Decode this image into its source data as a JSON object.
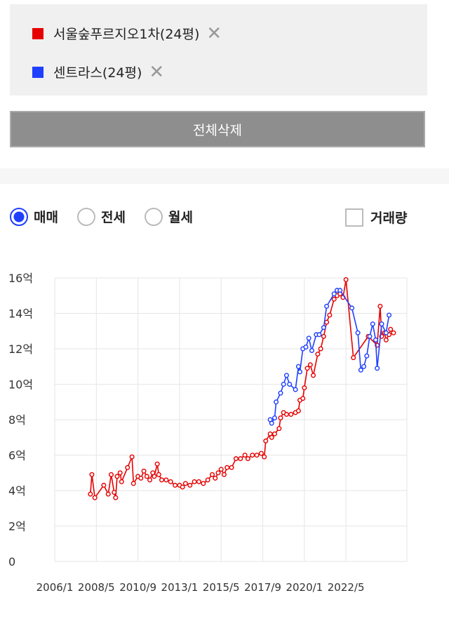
{
  "compare": {
    "items": [
      {
        "label": "서울숲푸르지오1차(24평)",
        "color": "#e60000",
        "remove_icon": "close-icon"
      },
      {
        "label": "센트라스(24평)",
        "color": "#1f3fff",
        "remove_icon": "close-icon"
      }
    ],
    "delete_all_label": "전체삭제"
  },
  "filters": {
    "radios": [
      {
        "label": "매매",
        "selected": true
      },
      {
        "label": "전세",
        "selected": false
      },
      {
        "label": "월세",
        "selected": false
      }
    ],
    "volume_checkbox": {
      "label": "거래량",
      "checked": false
    }
  },
  "chart_data": {
    "type": "line",
    "x_ticks": [
      "2006/1",
      "2008/5",
      "2010/9",
      "2013/1",
      "2015/5",
      "2017/9",
      "2020/1",
      "2022/5"
    ],
    "x_range": [
      "2006/1",
      "2025/10"
    ],
    "y_ticks": [
      "0",
      "2억",
      "4억",
      "6억",
      "8억",
      "10억",
      "12억",
      "14억",
      "16억"
    ],
    "y_range": [
      0,
      16
    ],
    "y_unit": "억",
    "grid": true,
    "series": [
      {
        "name": "서울숲푸르지오1차(24평)",
        "color": "#e60000",
        "points": [
          [
            "2008/1",
            3.8
          ],
          [
            "2008/2",
            4.9
          ],
          [
            "2008/4",
            3.6
          ],
          [
            "2008/10",
            4.3
          ],
          [
            "2009/1",
            3.8
          ],
          [
            "2009/3",
            4.9
          ],
          [
            "2009/5",
            3.9
          ],
          [
            "2009/6",
            3.6
          ],
          [
            "2009/7",
            4.8
          ],
          [
            "2009/9",
            5.0
          ],
          [
            "2009/10",
            4.5
          ],
          [
            "2010/2",
            5.3
          ],
          [
            "2010/5",
            5.9
          ],
          [
            "2010/6",
            4.4
          ],
          [
            "2010/9",
            4.8
          ],
          [
            "2010/11",
            4.7
          ],
          [
            "2011/1",
            5.1
          ],
          [
            "2011/3",
            4.8
          ],
          [
            "2011/5",
            4.6
          ],
          [
            "2011/7",
            5.0
          ],
          [
            "2011/8",
            4.8
          ],
          [
            "2011/10",
            5.5
          ],
          [
            "2011/11",
            4.9
          ],
          [
            "2012/1",
            4.6
          ],
          [
            "2012/4",
            4.6
          ],
          [
            "2012/7",
            4.5
          ],
          [
            "2012/10",
            4.3
          ],
          [
            "2013/1",
            4.3
          ],
          [
            "2013/3",
            4.2
          ],
          [
            "2013/5",
            4.4
          ],
          [
            "2013/8",
            4.3
          ],
          [
            "2013/11",
            4.5
          ],
          [
            "2014/2",
            4.5
          ],
          [
            "2014/5",
            4.4
          ],
          [
            "2014/8",
            4.6
          ],
          [
            "2014/11",
            4.9
          ],
          [
            "2015/1",
            4.7
          ],
          [
            "2015/3",
            5.0
          ],
          [
            "2015/5",
            5.2
          ],
          [
            "2015/7",
            4.9
          ],
          [
            "2015/9",
            5.3
          ],
          [
            "2015/12",
            5.3
          ],
          [
            "2016/3",
            5.8
          ],
          [
            "2016/6",
            5.8
          ],
          [
            "2016/9",
            6.0
          ],
          [
            "2016/11",
            5.8
          ],
          [
            "2017/2",
            6.0
          ],
          [
            "2017/5",
            6.0
          ],
          [
            "2017/8",
            6.1
          ],
          [
            "2017/10",
            5.9
          ],
          [
            "2017/11",
            6.8
          ],
          [
            "2018/2",
            7.2
          ],
          [
            "2018/3",
            7.0
          ],
          [
            "2018/5",
            7.2
          ],
          [
            "2018/8",
            7.5
          ],
          [
            "2018/9",
            8.1
          ],
          [
            "2018/11",
            8.4
          ],
          [
            "2019/1",
            8.3
          ],
          [
            "2019/4",
            8.3
          ],
          [
            "2019/7",
            8.4
          ],
          [
            "2019/9",
            8.5
          ],
          [
            "2019/10",
            9.1
          ],
          [
            "2019/12",
            9.2
          ],
          [
            "2020/1",
            9.8
          ],
          [
            "2020/3",
            10.9
          ],
          [
            "2020/5",
            11.1
          ],
          [
            "2020/7",
            10.5
          ],
          [
            "2020/10",
            11.7
          ],
          [
            "2020/12",
            12.0
          ],
          [
            "2021/2",
            12.7
          ],
          [
            "2021/4",
            13.5
          ],
          [
            "2021/6",
            13.9
          ],
          [
            "2021/9",
            14.8
          ],
          [
            "2021/11",
            15.0
          ],
          [
            "2022/1",
            15.1
          ],
          [
            "2022/3",
            14.9
          ],
          [
            "2022/5",
            15.9
          ],
          [
            "2022/10",
            11.5
          ],
          [
            "2023/8",
            12.7
          ],
          [
            "2024/2",
            12.2
          ],
          [
            "2024/4",
            14.4
          ],
          [
            "2024/5",
            12.7
          ],
          [
            "2024/7",
            12.9
          ],
          [
            "2024/8",
            12.5
          ],
          [
            "2024/10",
            12.8
          ],
          [
            "2024/11",
            13.1
          ],
          [
            "2025/1",
            12.9
          ]
        ]
      },
      {
        "name": "센트라스(24평)",
        "color": "#1f3fff",
        "points": [
          [
            "2018/2",
            8.0
          ],
          [
            "2018/3",
            7.8
          ],
          [
            "2018/5",
            8.1
          ],
          [
            "2018/6",
            9.0
          ],
          [
            "2018/9",
            9.5
          ],
          [
            "2018/11",
            10.0
          ],
          [
            "2019/1",
            10.5
          ],
          [
            "2019/3",
            10.0
          ],
          [
            "2019/7",
            9.7
          ],
          [
            "2019/9",
            11.0
          ],
          [
            "2019/10",
            10.7
          ],
          [
            "2019/12",
            12.0
          ],
          [
            "2020/2",
            12.1
          ],
          [
            "2020/4",
            12.6
          ],
          [
            "2020/6",
            11.9
          ],
          [
            "2020/9",
            12.8
          ],
          [
            "2020/11",
            12.8
          ],
          [
            "2021/2",
            13.2
          ],
          [
            "2021/4",
            14.4
          ],
          [
            "2021/9",
            15.1
          ],
          [
            "2021/11",
            15.3
          ],
          [
            "2022/1",
            15.3
          ],
          [
            "2022/9",
            14.3
          ],
          [
            "2023/1",
            12.9
          ],
          [
            "2023/3",
            10.8
          ],
          [
            "2023/5",
            11.0
          ],
          [
            "2023/7",
            11.6
          ],
          [
            "2023/9",
            12.7
          ],
          [
            "2023/11",
            13.4
          ],
          [
            "2024/1",
            12.5
          ],
          [
            "2024/2",
            10.9
          ],
          [
            "2024/5",
            13.4
          ],
          [
            "2024/8",
            12.9
          ],
          [
            "2024/10",
            13.9
          ]
        ]
      }
    ]
  }
}
